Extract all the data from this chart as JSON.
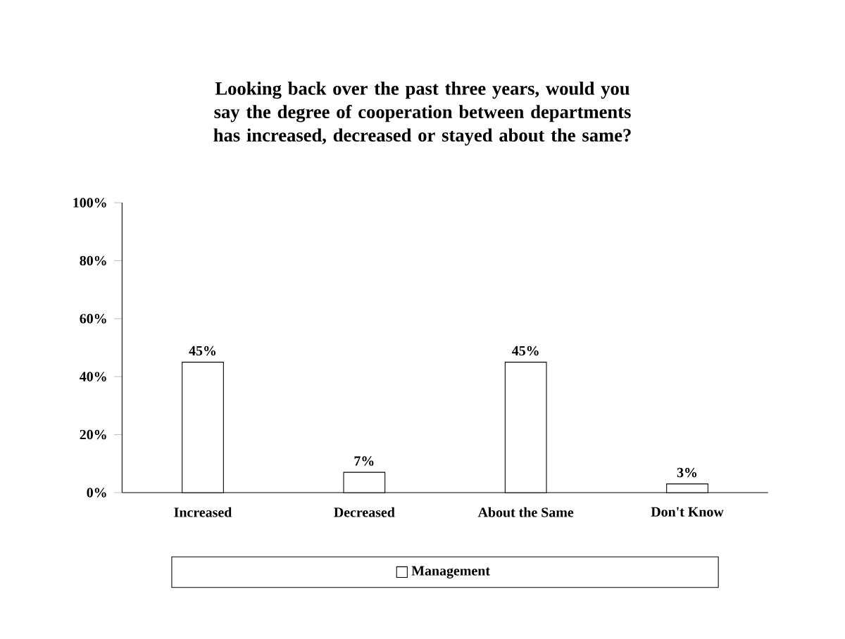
{
  "chart_data": {
    "type": "bar",
    "title": "Looking back over the past three years, would you say the degree of cooperation between departments has increased, decreased or stayed about the same?",
    "categories": [
      "Increased",
      "Decreased",
      "About the Same",
      "Don't Know"
    ],
    "series": [
      {
        "name": "Management",
        "color": "#ffffff",
        "values": [
          45,
          7,
          45,
          3
        ],
        "value_labels": [
          "45%",
          "7%",
          "45%",
          "3%"
        ]
      }
    ],
    "ylim": [
      0,
      100
    ],
    "yticks": [
      {
        "value": 0,
        "label": "0%"
      },
      {
        "value": 20,
        "label": "20%"
      },
      {
        "value": 40,
        "label": "40%"
      },
      {
        "value": 60,
        "label": "60%"
      },
      {
        "value": 80,
        "label": "80%"
      },
      {
        "value": 100,
        "label": "100%"
      }
    ],
    "legend": "bottom"
  }
}
